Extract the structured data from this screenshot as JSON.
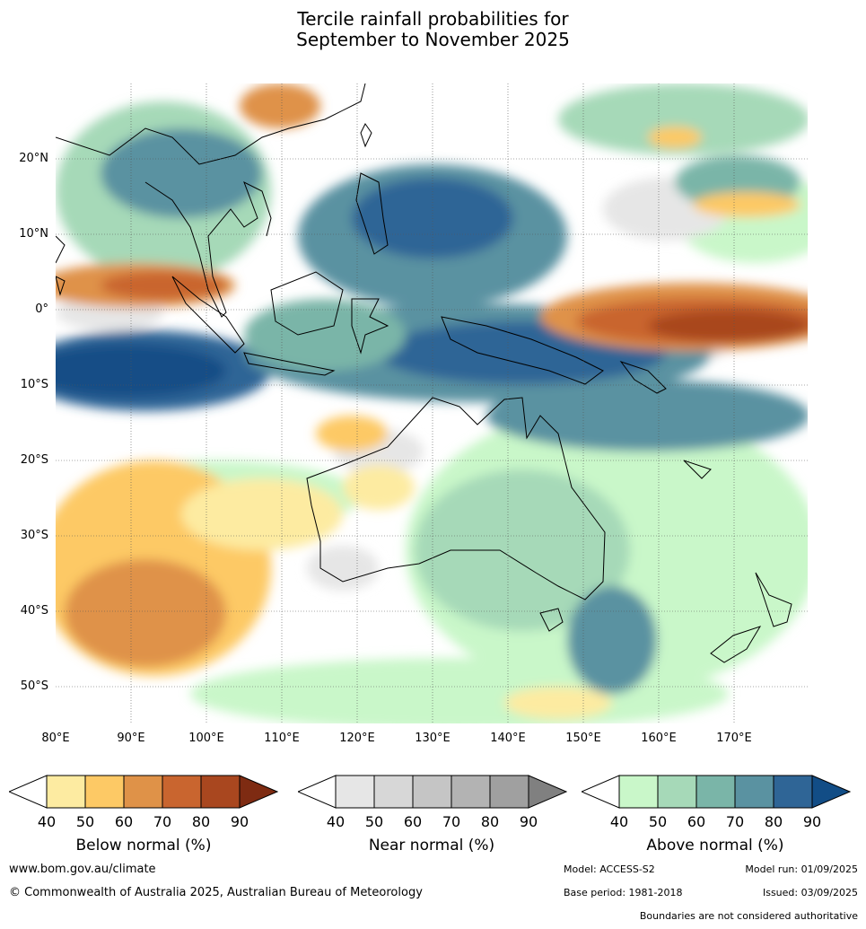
{
  "title_line1": "Tercile rainfall probabilities for",
  "title_line2": "September to November 2025",
  "lat_labels": [
    "20°N",
    "10°N",
    "0°",
    "10°S",
    "20°S",
    "30°S",
    "40°S",
    "50°S"
  ],
  "lon_labels": [
    "80°E",
    "90°E",
    "100°E",
    "110°E",
    "120°E",
    "130°E",
    "140°E",
    "150°E",
    "160°E",
    "170°E"
  ],
  "legends": [
    {
      "title": "Below normal (%)",
      "ticks": [
        "40",
        "50",
        "60",
        "70",
        "80",
        "90"
      ],
      "colors": [
        "#fdeba1",
        "#fdc965",
        "#df9248",
        "#c9652f",
        "#a9471f",
        "#7e2b12"
      ]
    },
    {
      "title": "Near normal (%)",
      "ticks": [
        "40",
        "50",
        "60",
        "70",
        "80",
        "90"
      ],
      "colors": [
        "#e6e6e6",
        "#d7d7d7",
        "#c5c5c5",
        "#b3b3b3",
        "#a0a0a0",
        "#808080"
      ]
    },
    {
      "title": "Above normal (%)",
      "ticks": [
        "40",
        "50",
        "60",
        "70",
        "80",
        "90"
      ],
      "colors": [
        "#c9f7c9",
        "#a6d9b8",
        "#7ab5a8",
        "#5a92a1",
        "#2f6596",
        "#124d86"
      ]
    }
  ],
  "footer": {
    "url": "www.bom.gov.au/climate",
    "copyright": "© Commonwealth of Australia 2025, Australian Bureau of Meteorology",
    "model": "Model: ACCESS-S2",
    "model_run": "Model run: 01/09/2025",
    "base_period": "Base period: 1981-2018",
    "issued": "Issued: 03/09/2025",
    "disclaimer": "Boundaries are not considered authoritative"
  }
}
